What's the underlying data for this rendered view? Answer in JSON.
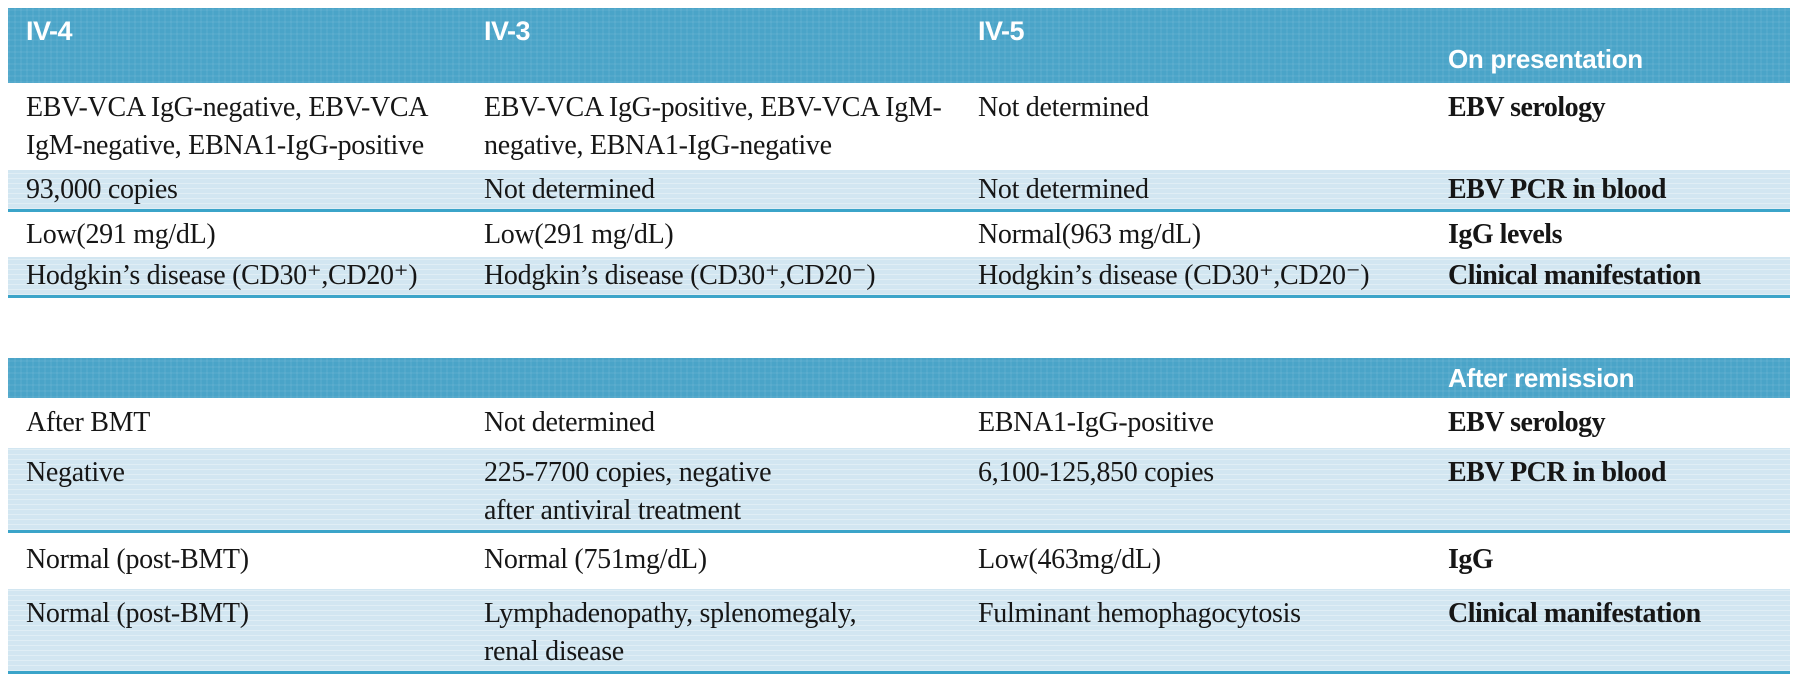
{
  "table": {
    "colors": {
      "header_bg": "#4aa4c8",
      "row_alt_bg": "#d2e6f1",
      "row_border": "#3ba4c9",
      "header_text": "#ffffff",
      "text": "#161616"
    },
    "sections": [
      {
        "header_label": "On presentation",
        "columns": [
          "IV-4",
          "IV-3",
          "IV-5"
        ],
        "rows": [
          {
            "label": "EBV serology",
            "cells": [
              "EBV-VCA IgG-negative, EBV-VCA\nIgM-negative, EBNA1-IgG-positive",
              "EBV-VCA IgG-positive, EBV-VCA IgM-\nnegative, EBNA1-IgG-negative",
              "Not determined"
            ]
          },
          {
            "label": "EBV PCR in blood",
            "cells": [
              "93,000 copies",
              "Not determined",
              "Not determined"
            ]
          },
          {
            "label": "IgG levels",
            "cells": [
              "Low(291 mg/dL)",
              "Low(291 mg/dL)",
              "Normal(963 mg/dL)"
            ]
          },
          {
            "label": "Clinical manifestation",
            "cells": [
              "Hodgkin’s disease (CD30⁺,CD20⁺)",
              "Hodgkin’s disease (CD30⁺,CD20⁻)",
              "Hodgkin’s disease (CD30⁺,CD20⁻)"
            ]
          }
        ]
      },
      {
        "header_label": "After remission",
        "rows": [
          {
            "label": "EBV serology",
            "cells": [
              "After BMT",
              "Not determined",
              "EBNA1-IgG-positive"
            ]
          },
          {
            "label": "EBV PCR in blood",
            "cells": [
              "Negative",
              "225-7700 copies, negative\nafter antiviral treatment",
              "6,100-125,850 copies"
            ]
          },
          {
            "label": "IgG",
            "cells": [
              "Normal (post-BMT)",
              "Normal (751mg/dL)",
              "Low(463mg/dL)"
            ]
          },
          {
            "label": "Clinical manifestation",
            "cells": [
              "Normal (post-BMT)",
              "Lymphadenopathy, splenomegaly,\nrenal disease",
              "Fulminant hemophagocytosis"
            ]
          }
        ]
      }
    ]
  }
}
